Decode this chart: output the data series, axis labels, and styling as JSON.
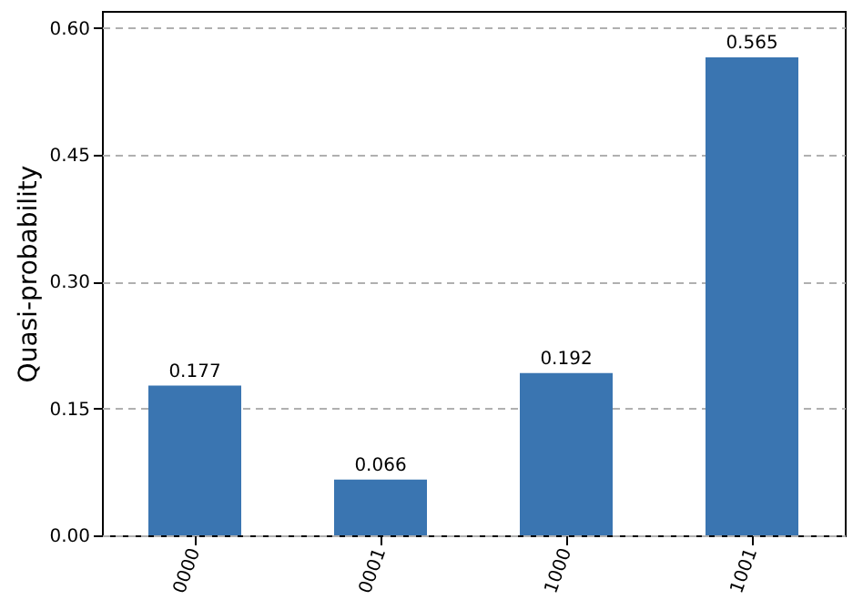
{
  "chart_data": {
    "type": "bar",
    "ylabel": "Quasi-probability",
    "categories": [
      "0000",
      "0001",
      "1000",
      "1001"
    ],
    "values": [
      0.177,
      0.066,
      0.192,
      0.565
    ],
    "color": "#3a75b1",
    "ylim": [
      0,
      0.62
    ],
    "yticks": [
      {
        "value": 0,
        "label": "0.00"
      },
      {
        "value": 0.15,
        "label": "0.15"
      },
      {
        "value": 0.3,
        "label": "0.30"
      },
      {
        "value": 0.45,
        "label": "0.45"
      },
      {
        "value": 0.6,
        "label": "0.60"
      }
    ],
    "grid": "y",
    "data_labels": true
  }
}
